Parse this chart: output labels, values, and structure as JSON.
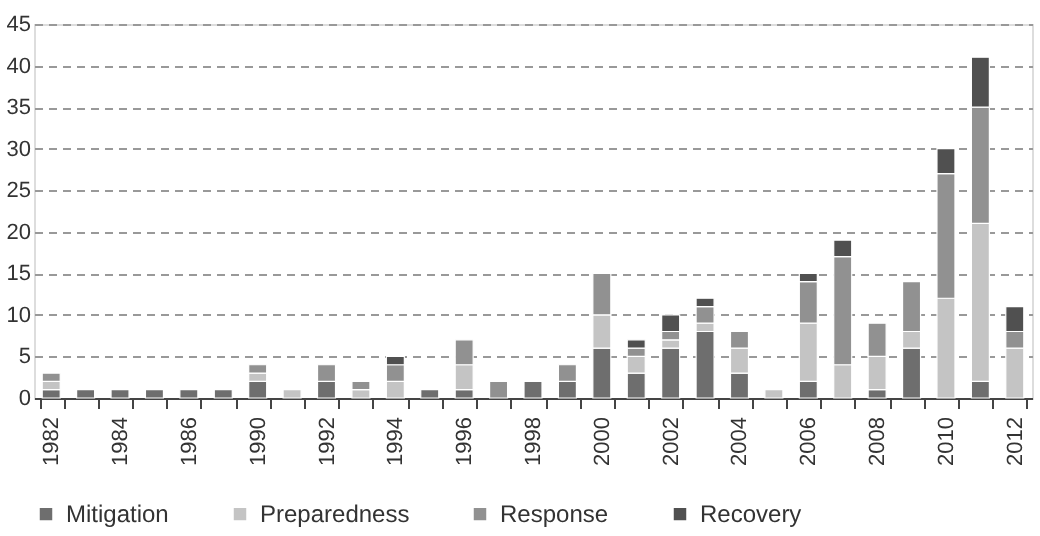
{
  "chart_data": {
    "type": "bar",
    "stacked": true,
    "categories": [
      "1982",
      null,
      "1984",
      null,
      "1986",
      null,
      "1990",
      null,
      "1992",
      null,
      "1994",
      null,
      "1996",
      null,
      "1998",
      null,
      "2000",
      null,
      "2002",
      null,
      "2004",
      null,
      "2006",
      null,
      "2008",
      null,
      "2010",
      null,
      "2012"
    ],
    "series": [
      {
        "name": "Mitigation",
        "color": "#6e6e6e",
        "values": [
          1,
          1,
          1,
          1,
          1,
          1,
          2,
          null,
          2,
          null,
          null,
          1,
          1,
          null,
          2,
          2,
          6,
          3,
          6,
          8,
          3,
          null,
          2,
          null,
          1,
          6,
          null,
          2,
          null
        ]
      },
      {
        "name": "Preparedness",
        "color": "#c4c4c4",
        "values": [
          1,
          null,
          null,
          null,
          null,
          null,
          1,
          1,
          null,
          1,
          2,
          null,
          3,
          null,
          null,
          null,
          4,
          2,
          1,
          1,
          3,
          1,
          7,
          4,
          4,
          2,
          12,
          19,
          6
        ]
      },
      {
        "name": "Response",
        "color": "#919191",
        "values": [
          1,
          null,
          null,
          null,
          null,
          null,
          1,
          null,
          2,
          1,
          2,
          null,
          3,
          2,
          null,
          2,
          5,
          1,
          1,
          2,
          2,
          null,
          5,
          13,
          4,
          6,
          15,
          14,
          2
        ]
      },
      {
        "name": "Recovery",
        "color": "#505050",
        "values": [
          null,
          null,
          null,
          null,
          null,
          null,
          null,
          null,
          null,
          null,
          1,
          null,
          null,
          null,
          null,
          null,
          null,
          1,
          2,
          1,
          null,
          null,
          1,
          2,
          null,
          null,
          3,
          6,
          3
        ]
      }
    ],
    "ylim": [
      0,
      45
    ],
    "yticks": [
      0,
      5,
      10,
      15,
      20,
      25,
      30,
      35,
      40,
      45
    ],
    "grid": "y",
    "legend": "bottom"
  }
}
